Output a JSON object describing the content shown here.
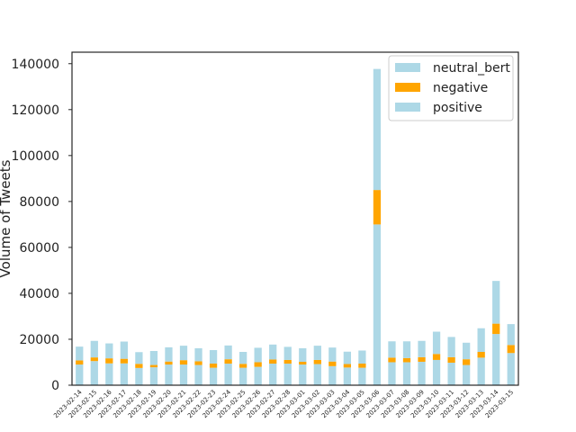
{
  "chart_data": {
    "type": "bar",
    "stacked": true,
    "ylabel": "Volume of Tweets",
    "ylim": [
      0,
      145000
    ],
    "yticks": [
      0,
      20000,
      40000,
      60000,
      80000,
      100000,
      120000,
      140000
    ],
    "grid": false,
    "legend_position": "top-right",
    "categories": [
      "2023-02-14",
      "2023-02-15",
      "2023-02-16",
      "2023-02-17",
      "2023-02-18",
      "2023-02-19",
      "2023-02-20",
      "2023-02-21",
      "2023-02-22",
      "2023-02-23",
      "2023-02-24",
      "2023-02-25",
      "2023-02-26",
      "2023-02-27",
      "2023-02-28",
      "2023-03-01",
      "2023-03-02",
      "2023-03-03",
      "2023-03-04",
      "2023-03-05",
      "2023-03-06",
      "2023-03-07",
      "2023-03-08",
      "2023-03-09",
      "2023-03-10",
      "2023-03-11",
      "2023-03-12",
      "2023-03-13",
      "2023-03-14",
      "2023-03-15"
    ],
    "series": [
      {
        "name": "positive",
        "color": "#add8e6",
        "values": [
          9000,
          10500,
          9500,
          9500,
          7500,
          7800,
          9000,
          9000,
          8800,
          7600,
          9400,
          7600,
          8000,
          9400,
          9400,
          9000,
          9200,
          8300,
          7700,
          7600,
          70000,
          10000,
          10000,
          10200,
          11000,
          9800,
          8800,
          12000,
          22300,
          14000
        ]
      },
      {
        "name": "negative",
        "color": "#ffa500",
        "values": [
          1800,
          1600,
          2200,
          2000,
          1800,
          1000,
          1300,
          1900,
          1600,
          1800,
          1900,
          1700,
          2000,
          1800,
          1600,
          1200,
          1800,
          2000,
          1500,
          1800,
          15000,
          2000,
          1800,
          2000,
          2600,
          2400,
          2500,
          2500,
          4500,
          3500
        ]
      },
      {
        "name": "neutral_bert",
        "color": "#add8e6",
        "values": [
          6000,
          7200,
          6500,
          7500,
          5100,
          6100,
          6200,
          6300,
          5700,
          5900,
          6000,
          5200,
          6300,
          6500,
          5700,
          5900,
          6200,
          6100,
          5400,
          5700,
          52700,
          7100,
          7300,
          7100,
          9700,
          8800,
          7200,
          10300,
          18600,
          9100
        ]
      }
    ]
  }
}
